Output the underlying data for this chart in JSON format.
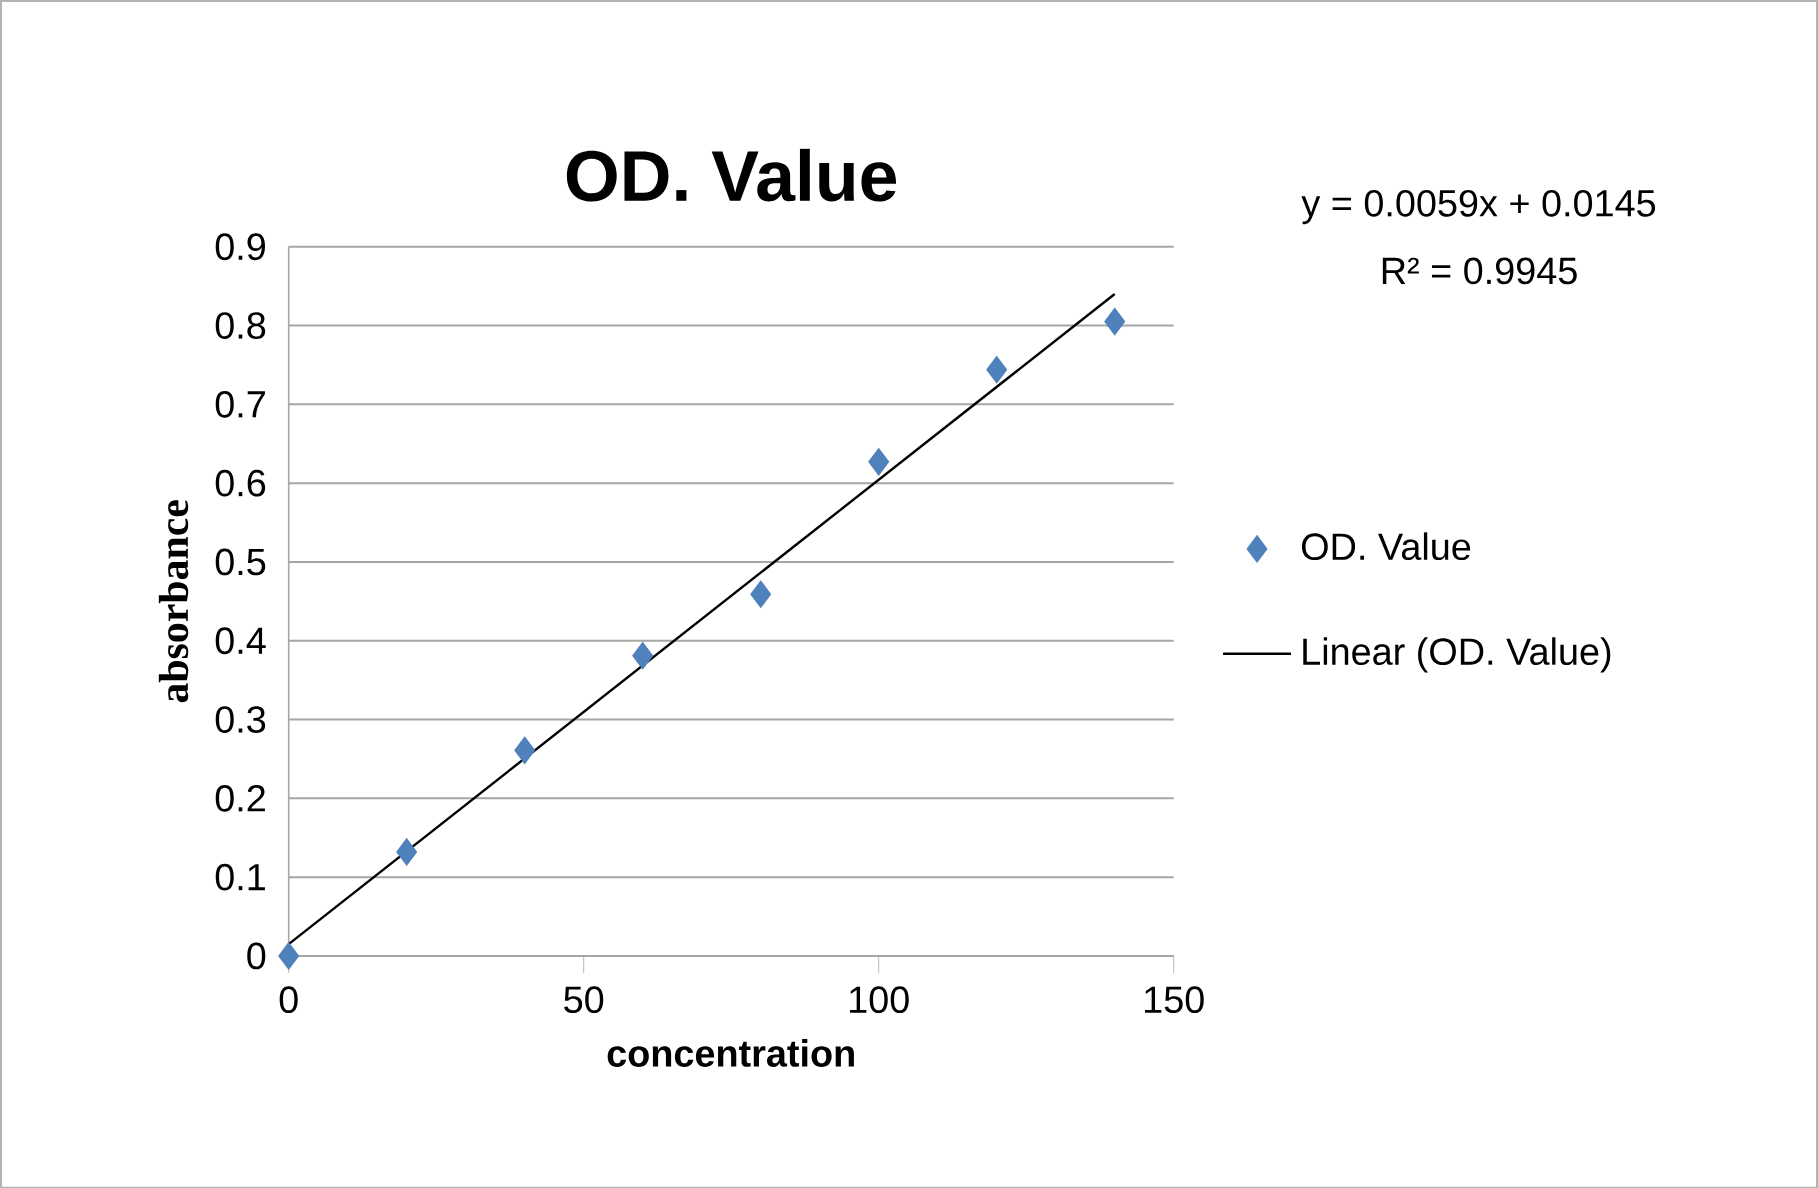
{
  "chart_data": {
    "type": "scatter",
    "title": "OD. Value",
    "xlabel": "concentration",
    "ylabel": "absorbance",
    "annotations": [
      "y = 0.0059x + 0.0145",
      "R² = 0.9945"
    ],
    "series": [
      {
        "name": "OD. Value",
        "color": "#4f81bd",
        "marker": "diamond",
        "x": [
          0,
          20,
          40,
          60,
          80,
          100,
          120,
          140
        ],
        "values": [
          0,
          0.132,
          0.261,
          0.381,
          0.459,
          0.627,
          0.744,
          0.805
        ]
      },
      {
        "name": "Linear (OD. Value)",
        "type": "line",
        "color": "#000000",
        "marker": "none",
        "x": [
          0,
          140
        ],
        "values": [
          0.015,
          0.84
        ]
      }
    ],
    "xlim": [
      0,
      150
    ],
    "xticks": [
      0,
      50,
      100,
      150
    ],
    "ylim": [
      0,
      0.9
    ],
    "yticks": [
      0,
      0.1,
      0.2,
      0.3,
      0.4,
      0.5,
      0.6,
      0.7,
      0.8,
      0.9
    ],
    "grid": "y",
    "legend": "right"
  }
}
